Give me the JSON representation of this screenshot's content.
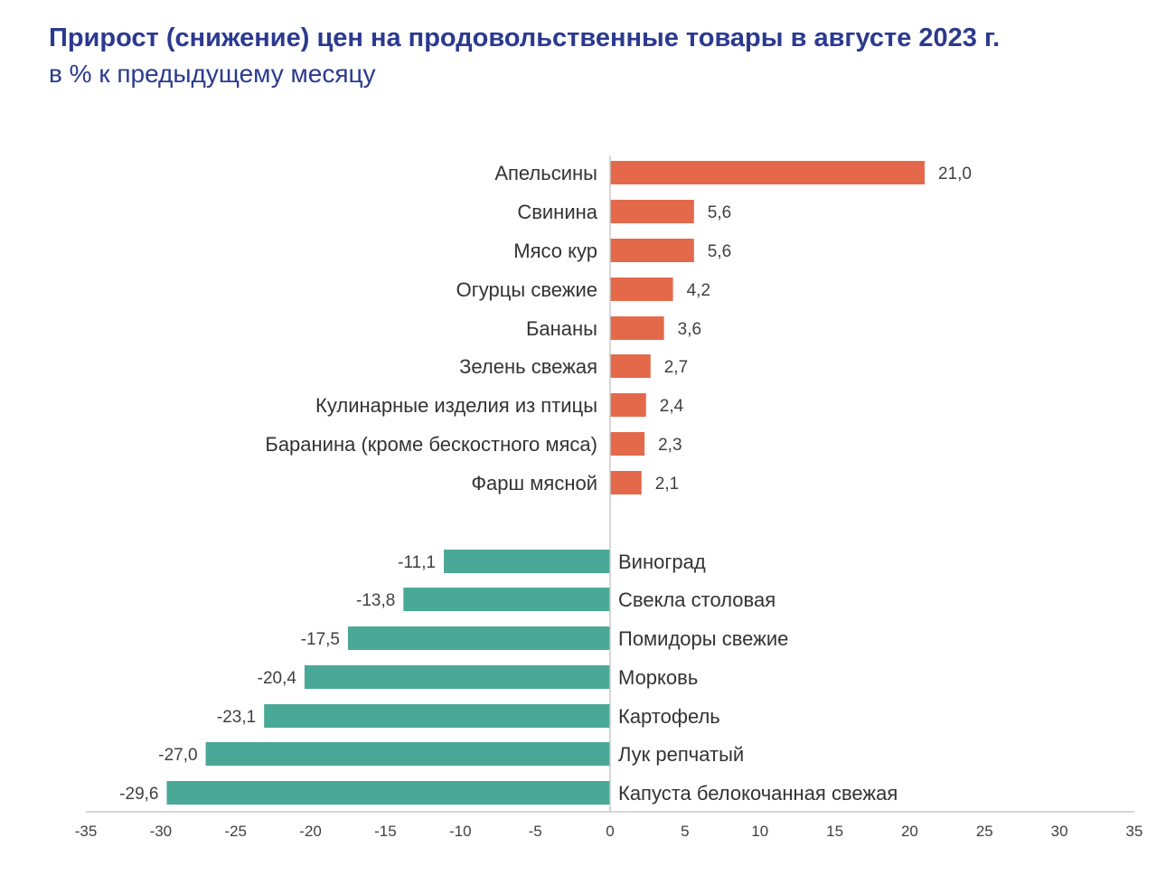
{
  "header": {
    "title": "Прирост (снижение) цен на продовольственные товары в августе 2023 г.",
    "subtitle": "в % к предыдущему месяцу"
  },
  "chart_data": {
    "type": "bar",
    "orientation": "horizontal",
    "title": "Прирост (снижение) цен на продовольственные товары в августе 2023 г.",
    "subtitle": "в % к предыдущему месяцу",
    "categories": [
      "Апельсины",
      "Свинина",
      "Мясо кур",
      "Огурцы свежие",
      "Бананы",
      "Зелень свежая",
      "Кулинарные изделия из птицы",
      "Баранина (кроме бескостного мяса)",
      "Фарш мясной",
      "Виноград",
      "Свекла столовая",
      "Помидоры свежие",
      "Морковь",
      "Картофель",
      "Лук репчатый",
      "Капуста белокочанная свежая"
    ],
    "values": [
      21.0,
      5.6,
      5.6,
      4.2,
      3.6,
      2.7,
      2.4,
      2.3,
      2.1,
      -11.1,
      -13.8,
      -17.5,
      -20.4,
      -23.1,
      -27.0,
      -29.6
    ],
    "value_labels": [
      "21,0",
      "5,6",
      "5,6",
      "4,2",
      "3,6",
      "2,7",
      "2,4",
      "2,3",
      "2,1",
      "-11,1",
      "-13,8",
      "-17,5",
      "-20,4",
      "-23,1",
      "-27,0",
      "-29,6"
    ],
    "xlim": [
      -35,
      35
    ],
    "x_ticks": [
      -35,
      -30,
      -25,
      -20,
      -15,
      -10,
      -5,
      0,
      5,
      10,
      15,
      20,
      25,
      30,
      35
    ],
    "colors": {
      "positive": "#e3694a",
      "negative": "#4aa896"
    },
    "grid": false,
    "legend": "none",
    "xlabel": "",
    "ylabel": ""
  }
}
